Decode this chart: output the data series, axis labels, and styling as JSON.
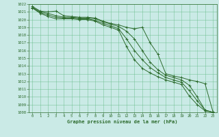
{
  "xlabel": "Graphe pression niveau de la mer (hPa)",
  "ylim": [
    1008,
    1022
  ],
  "xlim": [
    0,
    23
  ],
  "yticks": [
    1008,
    1009,
    1010,
    1011,
    1012,
    1013,
    1014,
    1015,
    1016,
    1017,
    1018,
    1019,
    1020,
    1021,
    1022
  ],
  "xticks": [
    0,
    1,
    2,
    3,
    4,
    5,
    6,
    7,
    8,
    9,
    10,
    11,
    12,
    13,
    14,
    15,
    16,
    17,
    18,
    19,
    20,
    21,
    22,
    23
  ],
  "background_color": "#caeae6",
  "grid_color": "#66bb88",
  "line_color": "#2d6b2d",
  "series": [
    [
      1021.7,
      1021.1,
      1021.0,
      1021.1,
      1020.5,
      1020.4,
      1020.3,
      1020.3,
      1020.2,
      1019.8,
      1019.5,
      1019.3,
      1019.0,
      1018.8,
      1019.0,
      1017.0,
      1015.5,
      1013.0,
      1012.7,
      1012.5,
      1012.2,
      1012.0,
      1011.7,
      1008.1
    ],
    [
      1021.6,
      1021.0,
      1020.8,
      1020.5,
      1020.3,
      1020.3,
      1020.2,
      1020.2,
      1020.1,
      1019.7,
      1019.4,
      1019.1,
      1018.5,
      1017.5,
      1016.0,
      1014.5,
      1013.5,
      1012.8,
      1012.5,
      1012.2,
      1011.5,
      1010.0,
      1008.3,
      1008.0
    ],
    [
      1021.5,
      1020.9,
      1020.6,
      1020.3,
      1020.2,
      1020.2,
      1020.1,
      1020.1,
      1019.9,
      1019.5,
      1019.2,
      1018.8,
      1017.5,
      1016.0,
      1014.8,
      1013.8,
      1013.1,
      1012.5,
      1012.2,
      1011.9,
      1010.8,
      1009.5,
      1008.3,
      1008.0
    ],
    [
      1021.5,
      1020.8,
      1020.4,
      1020.1,
      1020.1,
      1020.1,
      1020.0,
      1020.0,
      1019.8,
      1019.3,
      1019.0,
      1018.6,
      1016.5,
      1014.8,
      1013.7,
      1013.1,
      1012.6,
      1012.2,
      1011.9,
      1011.6,
      1010.1,
      1009.0,
      1008.2,
      1008.0
    ]
  ]
}
